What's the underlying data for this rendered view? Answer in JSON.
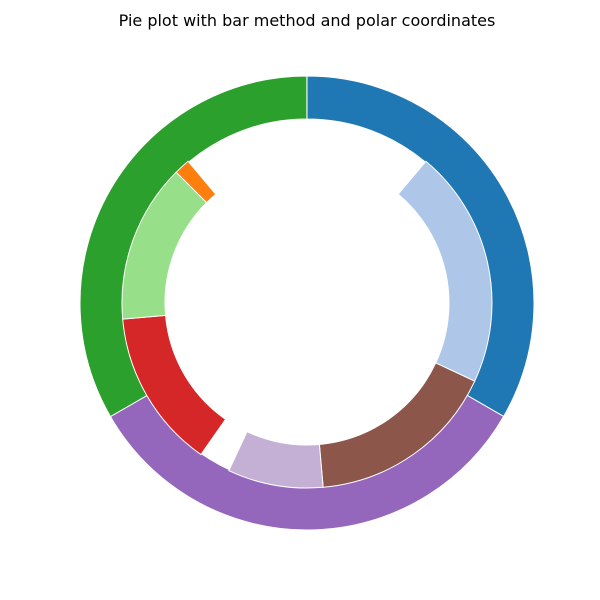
{
  "chart_data": {
    "type": "pie",
    "title": "Pie plot with bar method and polar coordinates",
    "outer_ring": {
      "start_angle_deg": 0,
      "direction": "clockwise_from_top",
      "values": [
        0.3333,
        0.3333,
        0.3333
      ],
      "colors": [
        "#1f77b4",
        "#9467bd",
        "#2ca02c"
      ],
      "gaps_before": [
        0.0,
        0.0,
        0.0
      ]
    },
    "inner_ring": {
      "values": [
        0.2083,
        0.1667,
        0.0833,
        0.1389,
        0.1389,
        0.0139
      ],
      "colors": [
        "#aec7e8",
        "#8c564b",
        "#c5b0d5",
        "#d62728",
        "#98df8a",
        "#ff7f0e"
      ],
      "gaps_before": [
        0.1111,
        0.0,
        0.0,
        0.0278,
        0.0,
        0.0
      ]
    },
    "legend": "none",
    "grid": false
  }
}
